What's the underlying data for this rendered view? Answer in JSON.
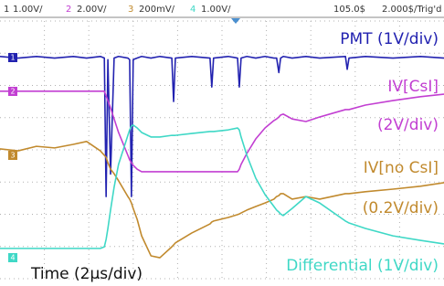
{
  "header": {
    "channels": [
      {
        "number": "1",
        "scale": "1.00V/"
      },
      {
        "number": "2",
        "scale": "2.00V/"
      },
      {
        "number": "3",
        "scale": "200mV/"
      },
      {
        "number": "4",
        "scale": "1.00V/"
      }
    ],
    "delay": "105.0$",
    "timebase": "2.000$/",
    "status": "Trig'd"
  },
  "chart_data": {
    "type": "line",
    "grid": true,
    "xlim": [
      -5,
      5
    ],
    "ylim": [
      -4,
      4
    ],
    "x": [
      -5,
      -4.59,
      -4.18,
      -3.77,
      -3.35,
      -3.05,
      -2.74,
      -2.65,
      -2.61,
      -2.57,
      -2.51,
      -2.43,
      -2.33,
      -2.12,
      -2.08,
      -2.04,
      -2.0,
      -1.91,
      -1.81,
      -1.6,
      -1.4,
      -1.13,
      -1.09,
      -1.05,
      -0.68,
      -0.27,
      -0.23,
      -0.19,
      0.14,
      0.35,
      0.39,
      0.43,
      0.56,
      0.76,
      0.97,
      1.17,
      1.23,
      1.28,
      1.32,
      1.38,
      1.58,
      1.89,
      2.2,
      2.78,
      2.82,
      2.86,
      3.23,
      3.85,
      4.47,
      5
    ],
    "series": [
      {
        "name": "PMT (1V/div)",
        "color": "#2222b0",
        "values": [
          2.9,
          2.85,
          2.9,
          2.85,
          2.9,
          2.85,
          2.9,
          2.85,
          -1.45,
          2.8,
          -0.75,
          2.85,
          2.9,
          2.85,
          2.8,
          -1.45,
          2.8,
          2.85,
          2.9,
          2.85,
          2.9,
          2.85,
          1.5,
          2.85,
          2.9,
          2.85,
          1.95,
          2.85,
          2.9,
          2.85,
          1.95,
          2.85,
          2.9,
          2.85,
          2.9,
          2.85,
          2.85,
          2.4,
          2.85,
          2.9,
          2.85,
          2.9,
          2.85,
          2.9,
          2.5,
          2.85,
          2.9,
          2.85,
          2.9,
          2.85
        ]
      },
      {
        "name": "IV[CsI]",
        "color": "#c23fd2",
        "values": [
          1.82,
          1.82,
          1.82,
          1.82,
          1.82,
          1.82,
          1.82,
          1.82,
          1.67,
          1.53,
          1.3,
          0.96,
          0.54,
          -0.17,
          -0.31,
          -0.4,
          -0.48,
          -0.6,
          -0.68,
          -0.68,
          -0.68,
          -0.68,
          -0.68,
          -0.68,
          -0.68,
          -0.68,
          -0.68,
          -0.68,
          -0.68,
          -0.68,
          -0.6,
          -0.45,
          -0.11,
          0.34,
          0.68,
          0.91,
          0.96,
          1.02,
          1.08,
          1.11,
          0.96,
          0.88,
          1.02,
          1.25,
          1.25,
          1.25,
          1.39,
          1.53,
          1.65,
          1.73
        ]
      },
      {
        "name": "IV[no CsI]",
        "color": "#c18a2e",
        "values": [
          0.03,
          -0.03,
          0.11,
          0.06,
          0.17,
          0.26,
          -0.03,
          -0.17,
          -0.23,
          -0.4,
          -0.6,
          -0.74,
          -0.96,
          -1.45,
          -1.53,
          -1.65,
          -1.82,
          -2.16,
          -2.67,
          -3.29,
          -3.35,
          -3.01,
          -2.95,
          -2.89,
          -2.58,
          -2.3,
          -2.24,
          -2.21,
          -2.1,
          -2.01,
          -1.99,
          -1.96,
          -1.87,
          -1.76,
          -1.65,
          -1.53,
          -1.45,
          -1.42,
          -1.36,
          -1.36,
          -1.53,
          -1.45,
          -1.53,
          -1.36,
          -1.36,
          -1.36,
          -1.3,
          -1.22,
          -1.13,
          -1.02
        ]
      },
      {
        "name": "Differential (1V/div)",
        "color": "#3fd8c6",
        "values": [
          -3.06,
          -3.06,
          -3.06,
          -3.06,
          -3.06,
          -3.06,
          -3.06,
          -3.01,
          -2.78,
          -2.44,
          -1.87,
          -1.16,
          -0.45,
          0.45,
          0.62,
          0.74,
          0.77,
          0.68,
          0.54,
          0.4,
          0.4,
          0.45,
          0.45,
          0.45,
          0.51,
          0.57,
          0.57,
          0.57,
          0.62,
          0.68,
          0.62,
          0.4,
          -0.17,
          -0.88,
          -1.39,
          -1.76,
          -1.87,
          -1.93,
          -1.99,
          -2.04,
          -1.82,
          -1.45,
          -1.65,
          -2.21,
          -2.24,
          -2.27,
          -2.44,
          -2.67,
          -2.81,
          -2.92
        ]
      }
    ],
    "annotations": [
      "(2V/div)",
      "(0.2V/div)",
      "Time (2μs/div)"
    ]
  }
}
